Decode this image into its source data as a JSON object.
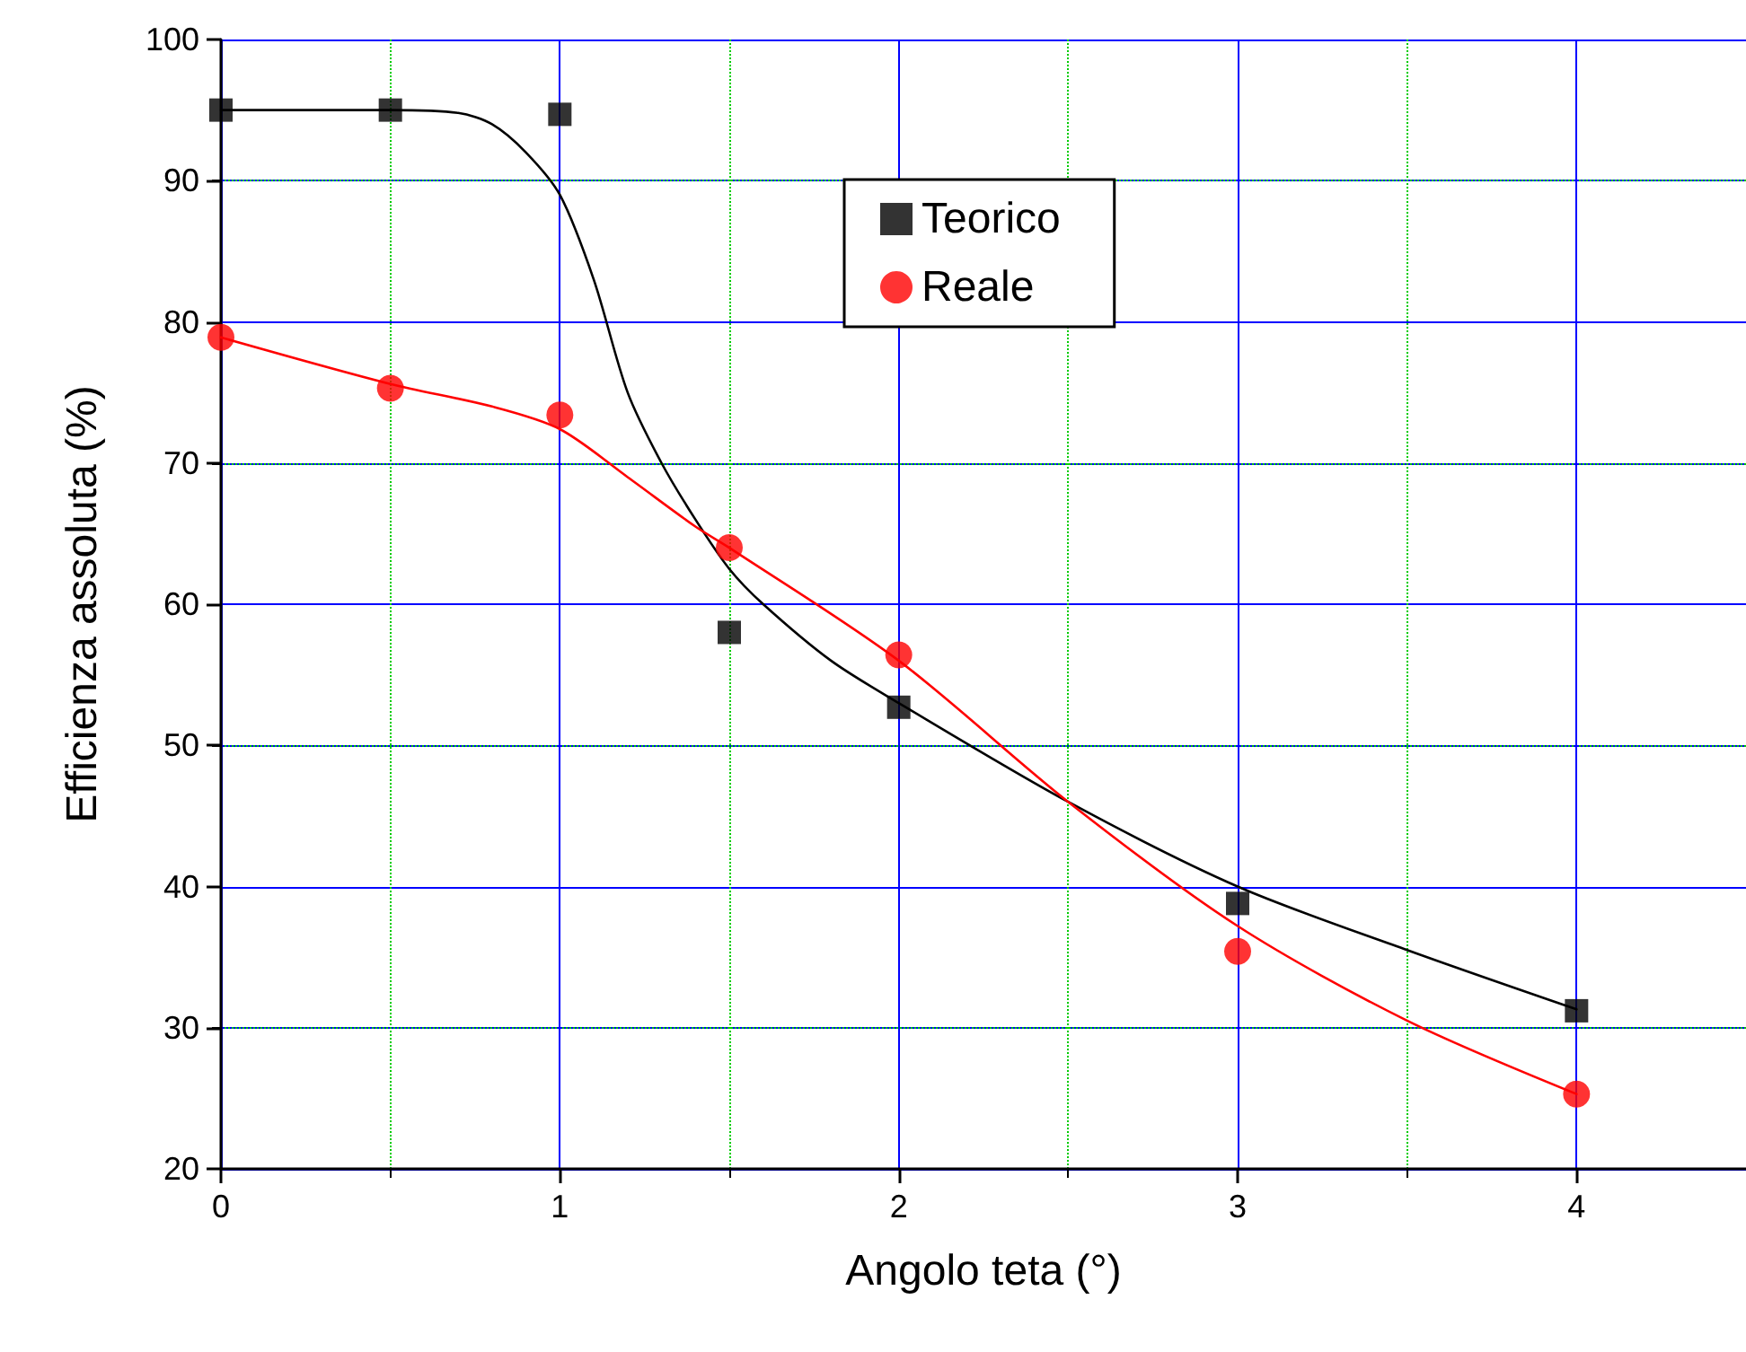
{
  "chart_data": {
    "type": "scatter",
    "xlabel": "Angolo teta (°)",
    "ylabel": "Efficienza assoluta (%)",
    "xlim": [
      0,
      4.5
    ],
    "xticks": [
      0,
      1,
      2,
      3,
      4
    ],
    "ylim": [
      20,
      100
    ],
    "yticks": [
      20,
      30,
      40,
      50,
      60,
      70,
      80,
      90,
      100
    ],
    "grid": true,
    "legend": "top",
    "series": [
      {
        "name": "Teorico",
        "marker": "square",
        "color": "#000000",
        "x": [
          0,
          0.5,
          1,
          1.5,
          2,
          3,
          4
        ],
        "values": [
          95,
          95,
          94.7,
          58,
          52.7,
          38.8,
          31.2
        ]
      },
      {
        "name": "Reale",
        "marker": "circle",
        "color": "#ff0000",
        "x": [
          0,
          0.5,
          1,
          1.5,
          2,
          3,
          4
        ],
        "values": [
          78.9,
          75.3,
          73.4,
          64,
          56.4,
          35.4,
          25.3
        ]
      },
      {
        "type": "line",
        "marker": "none",
        "color": "#000000",
        "line_style": "solid",
        "x": [
          0,
          0.5,
          0.7,
          0.8,
          0.9,
          1.0,
          1.1,
          1.2,
          1.3,
          1.4,
          1.5,
          1.6,
          1.8,
          2,
          2.5,
          3,
          3.5,
          4
        ],
        "values": [
          95,
          95,
          94.8,
          94,
          92,
          89,
          83,
          75,
          70,
          66,
          62.5,
          60,
          56,
          53,
          46,
          40,
          35.5,
          31.3
        ]
      },
      {
        "type": "line",
        "marker": "none",
        "color": "#ff0000",
        "line_style": "solid",
        "x": [
          0,
          0.5,
          0.8,
          1.0,
          1.2,
          1.4,
          1.5,
          2,
          2.5,
          3,
          3.5,
          4
        ],
        "values": [
          78.9,
          75.6,
          74,
          72.4,
          69,
          65.5,
          64,
          56,
          46,
          37.2,
          30.5,
          25.3
        ]
      }
    ]
  }
}
